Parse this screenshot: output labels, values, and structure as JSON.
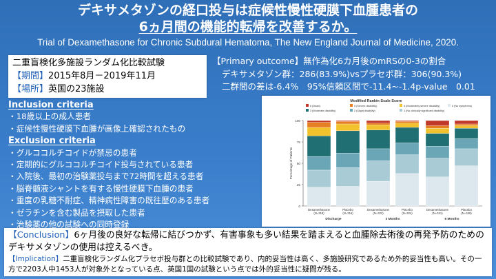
{
  "title": {
    "line1": "デキサメタゾンの経口投与は症候性慢性硬膜下血腫患者の",
    "line2": "6ヵ月間の機能的転帰を改善するか。",
    "citation": "Trial of Dexamethasone for Chronic Subdural Hematoma, The New England Journal of Medicine, 2020."
  },
  "study": {
    "design": "二重盲検化多施設ランダム化比較試験",
    "period_label": "【期間】",
    "period_value": "2015年8月－2019年11月",
    "site_label": "【場所】",
    "site_value": "英国の23施設"
  },
  "outcome": {
    "label": "【Primary outcome】",
    "text": "無作為化6カ月後のmRSの0-3の割合",
    "line2": "デキサメタゾン群：286(83.9%)vsプラセボ群：306(90.3%)",
    "line3": "二群間の差は-6.4%　95%信頼区間で-11.4~-1.4p-value　0.01"
  },
  "inclusion": {
    "title": "Inclusion criteria",
    "items": [
      "18歳以上の成人患者",
      "症候性慢性硬膜下血腫が画像上確認されたもの"
    ]
  },
  "exclusion": {
    "title": "Exclusion criteria",
    "items": [
      "グルココルチコイドが禁忌の患者",
      "定期的にグルココルチコイド投与されている患者",
      "入院後、最初の治験薬投与まで72時間を超える患者",
      "脳脊髄液シャントを有する慢性硬膜下血腫の患者",
      "重度の乳糖不耐症、精神病性障害の既往歴のある患者",
      "ゼラチンを含む製品を摂取した患者",
      "治験薬の他の試験への同時登録"
    ]
  },
  "conclusion": {
    "label": "【Conclusion】",
    "text": "6ヶ月後の良好な転帰に結びつかず、有害事象も多い結果を踏まえると血腫除去術後の再発予防のためのデキサメタゾンの使用は控えるべき。",
    "implication_label": "【Implication】",
    "implication_text": "二重盲検化ランダム化プラセボ投与群との比較試験であり、内的妥当性は高く、多施設研究であるため外的妥当性も高い。その一方で2203人中1453人が対象外となっている点、英国1国の試験という点では外的妥当性に疑問が残る。"
  },
  "chart_data": {
    "type": "bar",
    "stacked": true,
    "title": "Modified Rankin Scale Score",
    "ylabel": "Percentage of Patients",
    "ylim": [
      0,
      100
    ],
    "yticks": [
      0,
      25,
      50,
      75,
      100
    ],
    "legend_placement": "top",
    "legend": [
      {
        "label": "6 (Dead)",
        "color": "#c0392b"
      },
      {
        "label": "5 (Severe disability)",
        "color": "#e67e22"
      },
      {
        "label": "4 (Moderately severe disability)",
        "color": "#f2c12e"
      },
      {
        "label": "3 (Moderate disability)",
        "color": "#1f6f73"
      },
      {
        "label": "2 (Slight disability)",
        "color": "#6aa6b5"
      },
      {
        "label": "1 (No clinically significant disability)",
        "color": "#a9cbd6"
      },
      {
        "label": "0 (No symptoms)",
        "color": "#dde8ee"
      }
    ],
    "bars": [
      {
        "name": "Dexamethasone",
        "n": "(N=318)",
        "values": [
          2,
          6,
          10,
          24,
          16,
          20,
          22
        ]
      },
      {
        "name": "Placebo",
        "n": "(N=316)",
        "values": [
          1,
          3,
          8,
          26,
          17,
          22,
          23
        ]
      },
      {
        "name": "Dexamethasone",
        "n": "(N=322)",
        "values": [
          3,
          2,
          6,
          22,
          14,
          24,
          29
        ]
      },
      {
        "name": "Placebo",
        "n": "(N=324)",
        "values": [
          1,
          2,
          5,
          18,
          14,
          22,
          38
        ]
      },
      {
        "name": "Dexamethasone",
        "n": "(N=341)",
        "values": [
          6,
          3,
          6,
          15,
          14,
          22,
          34
        ]
      },
      {
        "name": "Placebo",
        "n": "(N=339)",
        "values": [
          4,
          2,
          3,
          12,
          12,
          20,
          47
        ]
      }
    ],
    "groups": [
      "Discharge",
      "3 Months",
      "6 Months"
    ]
  }
}
